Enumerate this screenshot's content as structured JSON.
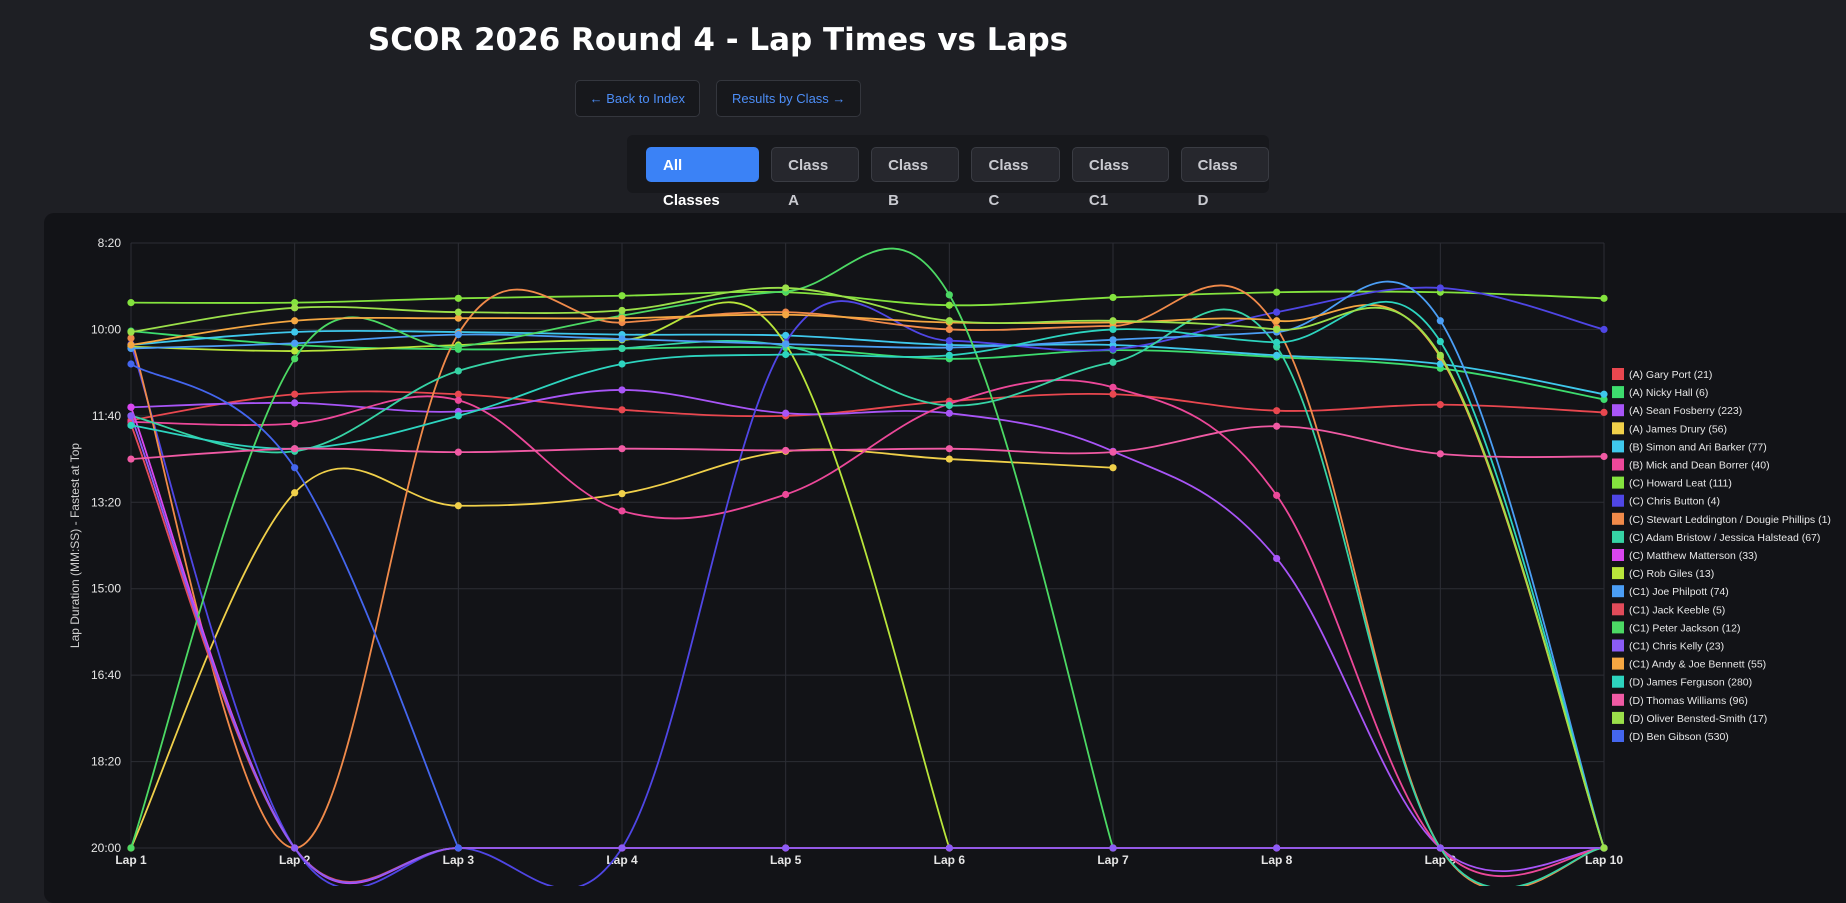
{
  "page": {
    "title": "SCOR 2026 Round 4 - Lap Times vs Laps",
    "nav": {
      "back_label": "← Back to Index",
      "results_label": "Results by Class →"
    },
    "filters": [
      "All Classes",
      "Class A",
      "Class B",
      "Class C",
      "Class C1",
      "Class D"
    ],
    "active_filter": "All Classes"
  },
  "colors": {
    "background": "#1e1f24",
    "panel": "#121317",
    "accent": "#3b82f6"
  },
  "chart_data": {
    "type": "line",
    "ylabel": "Lap Duration (MM:SS) - Fastest at Top",
    "xlabel": "",
    "categories": [
      "Lap 1",
      "Lap 2",
      "Lap 3",
      "Lap 4",
      "Lap 5",
      "Lap 6",
      "Lap 7",
      "Lap 8",
      "Lap 9",
      "Lap 10"
    ],
    "y_ticks": [
      500,
      600,
      700,
      800,
      900,
      1000,
      1100,
      1200
    ],
    "y_tick_labels": [
      "8:20",
      "10:00",
      "11:40",
      "13:20",
      "15:00",
      "16:40",
      "18:20",
      "20:00"
    ],
    "ylim": [
      500,
      1200
    ],
    "y_inverted": true,
    "grid": true,
    "legend_position": "right",
    "series": [
      {
        "name": "(A) Gary Port (21)",
        "color": "#e8474f",
        "values": [
          705,
          675,
          675,
          693,
          700,
          683,
          675,
          694,
          687,
          696
        ]
      },
      {
        "name": "(A) Nicky Hall (6)",
        "color": "#3ddc6e",
        "values": [
          602,
          618,
          623,
          622,
          621,
          634,
          624,
          632,
          645,
          681
        ]
      },
      {
        "name": "(A) Sean Fosberry (223)",
        "color": "#a855f7",
        "values": [
          690,
          685,
          695,
          670,
          697,
          697,
          741,
          865,
          1200,
          1200
        ]
      },
      {
        "name": "(A) James Drury (56)",
        "color": "#f0d04a",
        "values": [
          1200,
          789,
          804,
          790,
          741,
          750,
          760,
          null,
          null,
          null
        ]
      },
      {
        "name": "(B) Simon and Ari Barker (77)",
        "color": "#3fc8ec",
        "values": [
          618,
          603,
          603,
          606,
          607,
          618,
          618,
          630,
          640,
          675
        ]
      },
      {
        "name": "(B) Mick and Dean Borrer (40)",
        "color": "#ec4899",
        "values": [
          707,
          709,
          682,
          810,
          791,
          686,
          667,
          792,
          1200,
          1200
        ]
      },
      {
        "name": "(C) Howard Leat (111)",
        "color": "#84e33e",
        "values": [
          569,
          569,
          564,
          561,
          557,
          572,
          563,
          557,
          557,
          564
        ]
      },
      {
        "name": "(C) Chris Button (4)",
        "color": "#4f46e5",
        "values": [
          617,
          1200,
          1200,
          1200,
          615,
          613,
          623,
          580,
          552,
          600
        ]
      },
      {
        "name": "(C) Stewart Leddington / Dougie Phillips (1)",
        "color": "#f08a4a",
        "values": [
          610,
          1200,
          605,
          592,
          580,
          600,
          596,
          598,
          1200,
          1200
        ]
      },
      {
        "name": "(C) Adam Bristow / Jessica Halstead (67)",
        "color": "#36d3a5",
        "values": [
          700,
          741,
          648,
          622,
          619,
          688,
          638,
          620,
          1200,
          1200
        ]
      },
      {
        "name": "(C) Matthew Matterson (33)",
        "color": "#d946ef",
        "values": [
          690,
          1200,
          1200,
          1200,
          1200,
          1200,
          1200,
          1200,
          1200,
          1200
        ]
      },
      {
        "name": "(C) Rob Giles (13)",
        "color": "#b9e53b",
        "values": [
          620,
          625,
          618,
          612,
          617,
          1200,
          null,
          null,
          null,
          null
        ]
      },
      {
        "name": "(C1) Joe Philpott (74)",
        "color": "#4b9ef5",
        "values": [
          622,
          616,
          606,
          611,
          617,
          621,
          612,
          603,
          590,
          1200
        ]
      },
      {
        "name": "(C1) Jack Keeble (5)",
        "color": "#e14b5a",
        "values": [
          710,
          1200,
          1200,
          1200,
          1200,
          1200,
          1200,
          1200,
          1200,
          1200
        ]
      },
      {
        "name": "(C1) Peter Jackson (12)",
        "color": "#4cd964",
        "values": [
          1200,
          634,
          620,
          584,
          556,
          560,
          1200,
          null,
          null,
          null
        ]
      },
      {
        "name": "(C1) Chris Kelly (23)",
        "color": "#8b5cf6",
        "values": [
          700,
          1200,
          1200,
          1200,
          1200,
          1200,
          1200,
          1200,
          1200,
          1200
        ]
      },
      {
        "name": "(C1) Andy & Joe Bennett (55)",
        "color": "#f5a742",
        "values": [
          618,
          590,
          587,
          587,
          583,
          592,
          592,
          590,
          632,
          1200
        ]
      },
      {
        "name": "(D) James Ferguson (280)",
        "color": "#2dd4bf",
        "values": [
          711,
          738,
          700,
          640,
          629,
          630,
          600,
          615,
          614,
          1200
        ]
      },
      {
        "name": "(D) Thomas Williams (96)",
        "color": "#f05aa4",
        "values": [
          750,
          738,
          742,
          738,
          740,
          738,
          742,
          712,
          744,
          747
        ]
      },
      {
        "name": "(D) Oliver Bensted-Smith (17)",
        "color": "#9be04a",
        "values": [
          603,
          575,
          580,
          578,
          552,
          590,
          590,
          600,
          630,
          1200
        ]
      },
      {
        "name": "(D) Ben Gibson (530)",
        "color": "#4466ee",
        "values": [
          640,
          760,
          1200,
          null,
          null,
          null,
          null,
          null,
          null,
          null
        ]
      }
    ]
  }
}
